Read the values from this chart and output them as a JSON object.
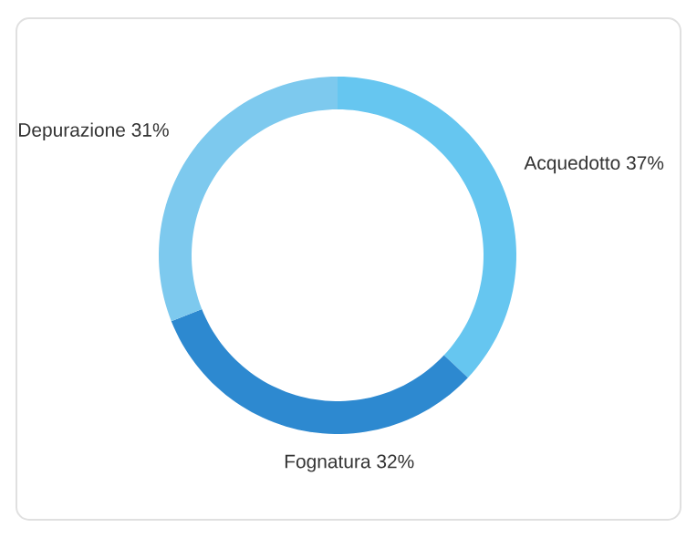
{
  "chart_data": {
    "type": "donut",
    "categories": [
      "Acquedotto",
      "Fognatura",
      "Depurazione"
    ],
    "values": [
      37,
      32,
      31
    ],
    "value_labels": [
      "37%",
      "32%",
      "31%"
    ],
    "colors": [
      "#66c6f0",
      "#2d89d0",
      "#7dc9ee"
    ]
  }
}
